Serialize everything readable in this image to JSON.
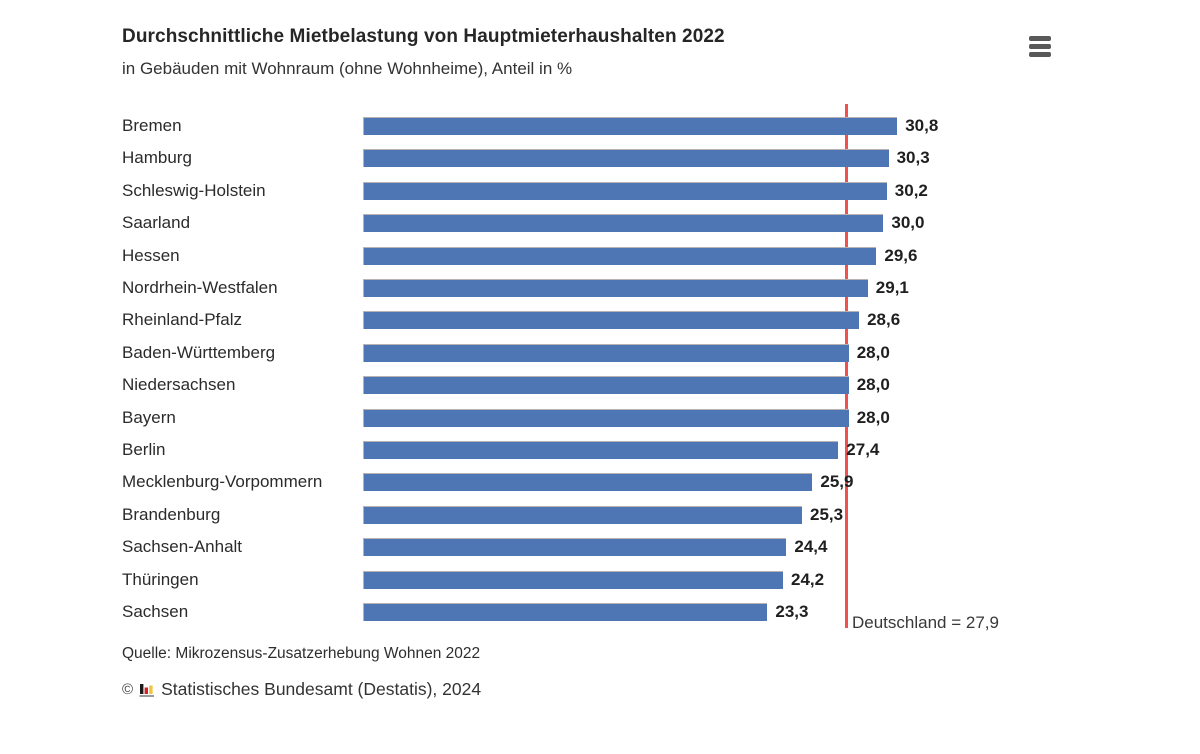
{
  "header": {
    "title": "Durchschnittliche Mietbelastung von Hauptmieterhaushalten 2022",
    "subtitle": "in Gebäuden mit Wohnraum (ohne Wohnheime), Anteil in %",
    "menu_icon": "hamburger-menu-icon"
  },
  "chart_data": {
    "type": "bar",
    "orientation": "horizontal",
    "title": "Durchschnittliche Mietbelastung von Hauptmieterhaushalten 2022",
    "subtitle": "in Gebäuden mit Wohnraum (ohne Wohnheime), Anteil in %",
    "unit": "Anteil in %",
    "categories": [
      "Bremen",
      "Hamburg",
      "Schleswig-Holstein",
      "Saarland",
      "Hessen",
      "Nordrhein-Westfalen",
      "Rheinland-Pfalz",
      "Baden-Württemberg",
      "Niedersachsen",
      "Bayern",
      "Berlin",
      "Mecklenburg-Vorpommern",
      "Brandenburg",
      "Sachsen-Anhalt",
      "Thüringen",
      "Sachsen"
    ],
    "values": [
      30.8,
      30.3,
      30.2,
      30.0,
      29.6,
      29.1,
      28.6,
      28.0,
      28.0,
      28.0,
      27.4,
      25.9,
      25.3,
      24.4,
      24.2,
      23.3
    ],
    "value_labels": [
      "30,8",
      "30,3",
      "30,2",
      "30,0",
      "29,6",
      "29,1",
      "28,6",
      "28,0",
      "28,0",
      "28,0",
      "27,4",
      "25,9",
      "25,3",
      "24,4",
      "24,2",
      "23,3"
    ],
    "xlim": [
      0,
      31
    ],
    "grid": false,
    "bar_color": "#4e76b5",
    "reference_line": {
      "value": 27.9,
      "label": "Deutschland = 27,9",
      "color": "#f0504e"
    }
  },
  "footer": {
    "source": "Quelle: Mikrozensus-Zusatzerhebung Wohnen 2022",
    "copyright_symbol": "©",
    "logo_icon": "destatis-bar-chart-icon",
    "copyright": "Statistisches Bundesamt (Destatis), 2024"
  }
}
